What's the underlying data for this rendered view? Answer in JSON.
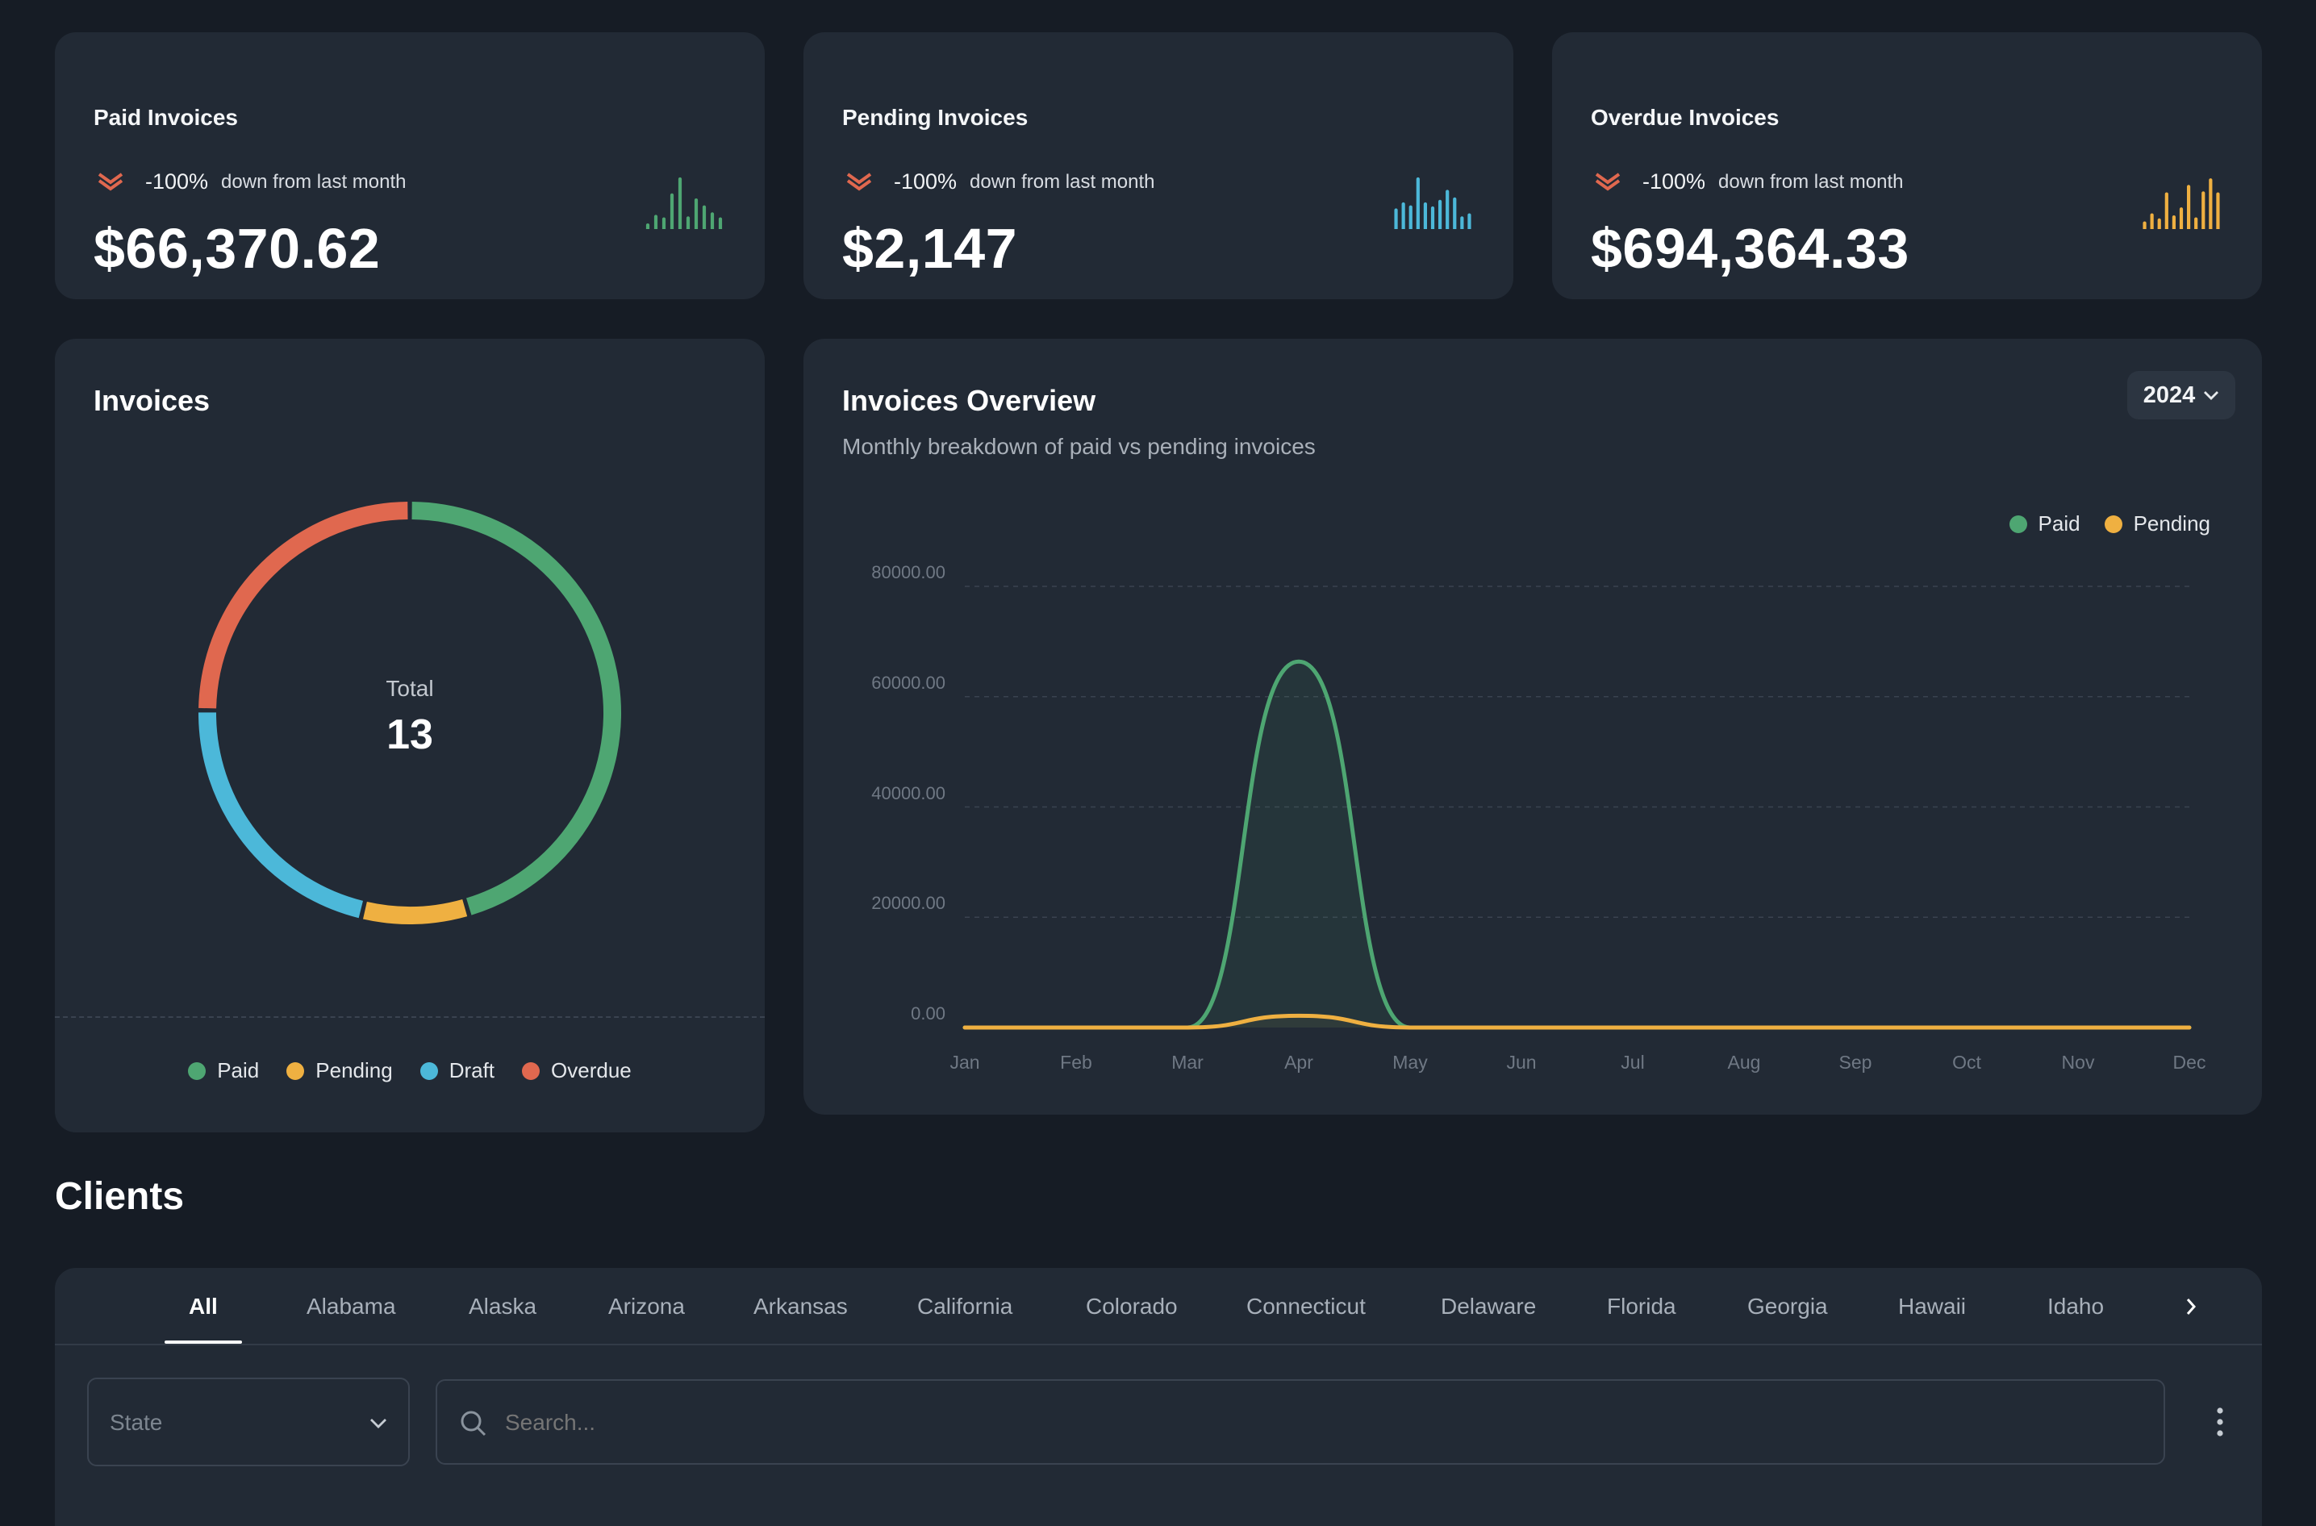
{
  "stats": [
    {
      "title": "Paid Invoices",
      "pct": "-100%",
      "trend_text": "down from last month",
      "amount": "$66,370.62",
      "color": "#4ea672",
      "spark": [
        0.08,
        0.25,
        0.2,
        0.68,
        1.0,
        0.22,
        0.58,
        0.44,
        0.3,
        0.2
      ]
    },
    {
      "title": "Pending Invoices",
      "pct": "-100%",
      "trend_text": "down from last month",
      "amount": "$2,147",
      "color": "#4cb8d9",
      "spark": [
        0.38,
        0.5,
        0.44,
        1.0,
        0.5,
        0.42,
        0.55,
        0.75,
        0.6,
        0.22,
        0.28
      ]
    },
    {
      "title": "Overdue Invoices",
      "pct": "-100%",
      "trend_text": "down from last month",
      "amount": "$694,364.33",
      "color": "#efb041",
      "spark": [
        0.12,
        0.28,
        0.18,
        0.7,
        0.24,
        0.4,
        0.85,
        0.2,
        0.72,
        0.98,
        0.7
      ]
    }
  ],
  "trend_color": "#e0684f",
  "invoices_card": {
    "title": "Invoices",
    "total_label": "Total",
    "total_value": "13"
  },
  "overview": {
    "title": "Invoices Overview",
    "subtitle": "Monthly breakdown of paid vs pending invoices",
    "year": "2024"
  },
  "clients": {
    "title": "Clients",
    "tabs": [
      "All",
      "Alabama",
      "Alaska",
      "Arizona",
      "Arkansas",
      "California",
      "Colorado",
      "Connecticut",
      "Delaware",
      "Florida",
      "Georgia",
      "Hawaii",
      "Idaho"
    ],
    "active_tab": 0,
    "state_placeholder": "State",
    "search_placeholder": "Search..."
  },
  "chart_data": [
    {
      "type": "pie",
      "donut": true,
      "categories": [
        "Paid",
        "Pending",
        "Draft",
        "Overdue"
      ],
      "values": [
        5.5,
        1.0,
        2.6,
        3.0
      ],
      "colors": [
        "#4ea672",
        "#efb041",
        "#4cb8d9",
        "#e0684f"
      ],
      "legend": "bottom"
    },
    {
      "type": "area",
      "categories": [
        "Jan",
        "Feb",
        "Mar",
        "Apr",
        "May",
        "Jun",
        "Jul",
        "Aug",
        "Sep",
        "Oct",
        "Nov",
        "Dec"
      ],
      "series": [
        {
          "name": "Paid",
          "color": "#4ea672",
          "values": [
            0,
            0,
            0,
            66370.62,
            0,
            0,
            0,
            0,
            0,
            0,
            0,
            0
          ]
        },
        {
          "name": "Pending",
          "color": "#efb041",
          "values": [
            0,
            0,
            0,
            2147,
            0,
            0,
            0,
            0,
            0,
            0,
            0,
            0
          ]
        }
      ],
      "yticks": [
        "80000.00",
        "60000.00",
        "40000.00",
        "20000.00",
        "0.00"
      ],
      "ylim": [
        0,
        80000
      ],
      "grid": true,
      "legend": "top-right"
    }
  ]
}
